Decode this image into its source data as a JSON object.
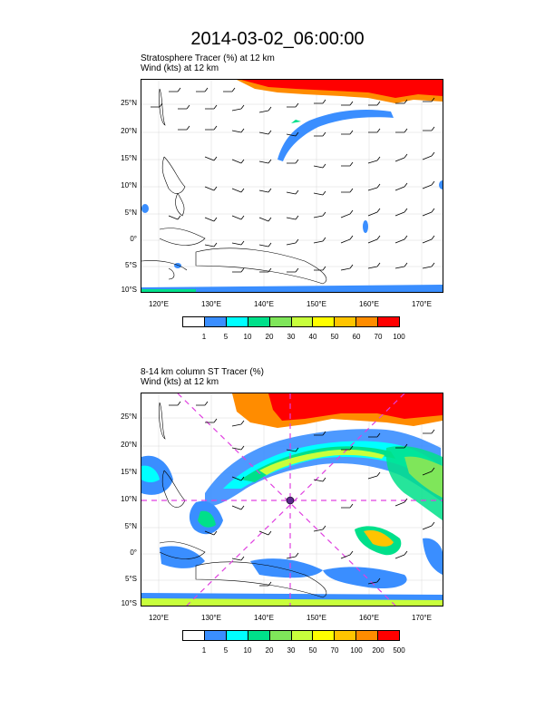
{
  "title": "2014-03-02_06:00:00",
  "panel1": {
    "line1": "Stratosphere Tracer   (%)     at   12 km",
    "line2": "Wind    (kts)      at   12 km",
    "lat_ticks": [
      "25°N",
      "20°N",
      "15°N",
      "10°N",
      "5°N",
      "0°",
      "5°S",
      "10°S"
    ],
    "lon_ticks": [
      "120°E",
      "130°E",
      "140°E",
      "150°E",
      "160°E",
      "170°E"
    ],
    "colorbar": {
      "colors": [
        "#ffffff",
        "#3a8eff",
        "#00ffff",
        "#00e08a",
        "#7fe65a",
        "#c8ff3c",
        "#ffff00",
        "#ffc400",
        "#ff8c00",
        "#ff0000"
      ],
      "labels": [
        "1",
        "5",
        "10",
        "20",
        "30",
        "40",
        "50",
        "60",
        "70",
        "100"
      ]
    }
  },
  "panel2": {
    "line1": "8-14 km column ST Tracer    (%)",
    "line2": "Wind    (kts)      at   12 km",
    "lat_ticks": [
      "25°N",
      "20°N",
      "15°N",
      "10°N",
      "5°N",
      "0°",
      "5°S",
      "10°S"
    ],
    "lon_ticks": [
      "120°E",
      "130°E",
      "140°E",
      "150°E",
      "160°E",
      "170°E"
    ],
    "colorbar": {
      "colors": [
        "#ffffff",
        "#3a8eff",
        "#00ffff",
        "#00e08a",
        "#7fe65a",
        "#c8ff3c",
        "#ffff00",
        "#ffc400",
        "#ff8c00",
        "#ff0000"
      ],
      "labels": [
        "1",
        "5",
        "10",
        "20",
        "30",
        "50",
        "70",
        "100",
        "200",
        "500"
      ]
    }
  }
}
